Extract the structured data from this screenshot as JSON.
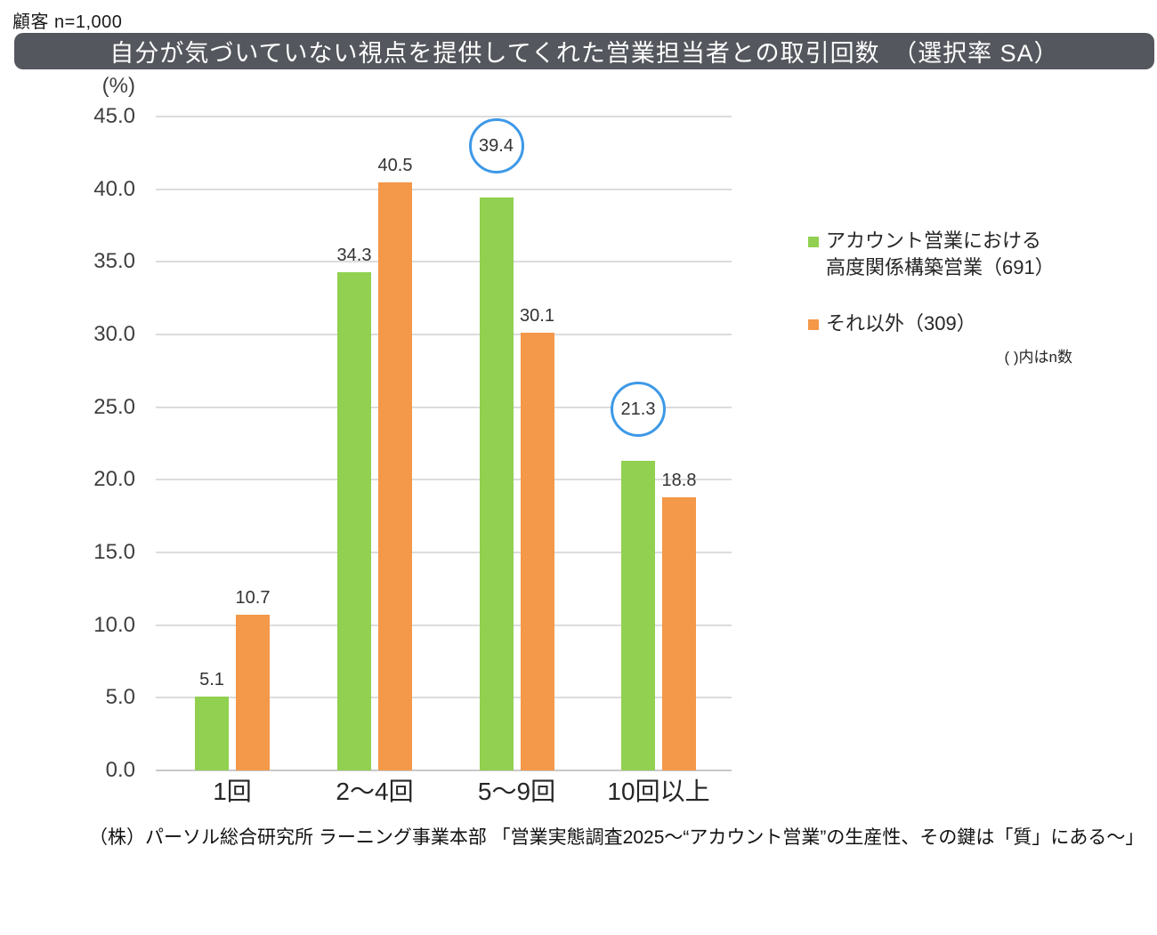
{
  "header": {
    "note": "顧客 n=1,000"
  },
  "title": {
    "text": "自分が気づいていない視点を提供してくれた営業担当者との取引回数　（選択率 SA）"
  },
  "colors": {
    "title_bar_bg": "#54575D",
    "title_text": "#FFFFFF",
    "series_green": "#91D050",
    "series_orange": "#F4984A",
    "highlight_circle": "#3D99E8",
    "gridline": "#DCDCDC",
    "axis_line": "#C9C9C9"
  },
  "chart_data": {
    "type": "bar",
    "title": "自分が気づいていない視点を提供してくれた営業担当者との取引回数　（選択率 SA）",
    "unit_label": "(%)",
    "categories": [
      "1回",
      "2～4回",
      "5～9回",
      "10回以上"
    ],
    "series": [
      {
        "name": "アカウント営業における高度関係構築営業（691）",
        "n": 691,
        "color": "#91D050",
        "values": [
          5.1,
          34.3,
          39.4,
          21.3
        ]
      },
      {
        "name": "それ以外（309）",
        "n": 309,
        "color": "#F4984A",
        "values": [
          10.7,
          40.5,
          30.1,
          18.8
        ]
      }
    ],
    "ylim": [
      0,
      45
    ],
    "ytick_step": 5,
    "ytick_labels": [
      "0.0",
      "5.0",
      "10.0",
      "15.0",
      "20.0",
      "25.0",
      "30.0",
      "35.0",
      "40.0",
      "45.0"
    ],
    "grid": true,
    "legend_position": "right",
    "highlighted_points": [
      {
        "series": 0,
        "category_index": 2,
        "value": 39.4,
        "style": "blue-circle"
      },
      {
        "series": 0,
        "category_index": 3,
        "value": 21.3,
        "style": "blue-circle"
      }
    ]
  },
  "legend": {
    "items": [
      {
        "lines": [
          "アカウント営業における",
          "高度関係構築営業（691）"
        ],
        "color": "#91D050"
      },
      {
        "lines": [
          "それ以外（309）"
        ],
        "color": "#F4984A"
      }
    ],
    "note": "( )内はn数"
  },
  "footer": {
    "source": "（株）パーソル総合研究所 ラーニング事業本部 「営業実態調査2025～“アカウント営業”の生産性、その鍵は「質」にある～」"
  }
}
